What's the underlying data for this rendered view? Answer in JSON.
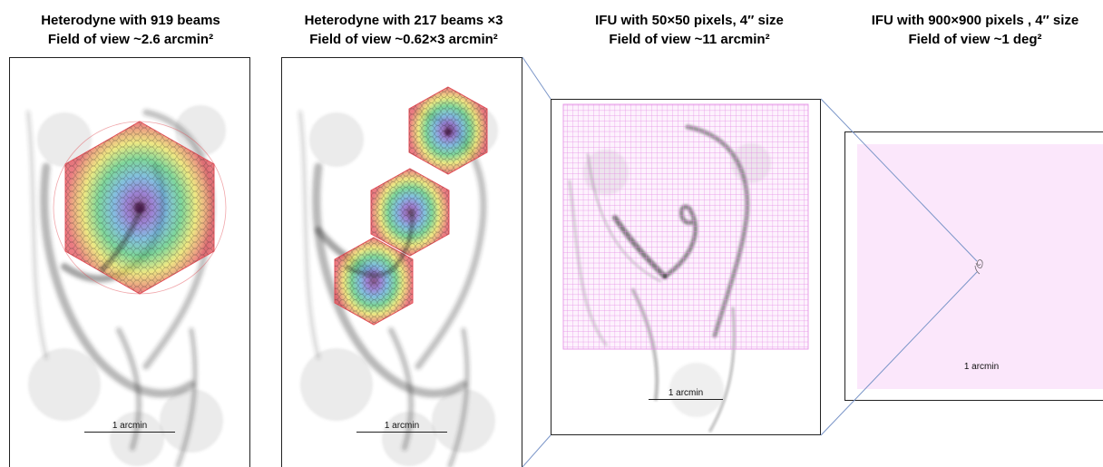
{
  "colors": {
    "ring_outer": "#e44f58",
    "ring_yellow": "#e8e15a",
    "ring_green": "#54c97a",
    "ring_blue": "#4b6fd1",
    "ring_center": "#5a1a5e",
    "ifu_grid": "#e38be4",
    "ifu_fill": "#fbe7fb",
    "nebula": "#333333",
    "connector": "#7a95c8"
  },
  "panels": [
    {
      "title_line1": "Heterodyne with 919 beams",
      "title_line2": "Field of view ~2.6 arcmin²",
      "scale_label": "1 arcmin",
      "image_name": "nebula-image",
      "overlay": "hexagon-array-919"
    },
    {
      "title_line1": "Heterodyne with 217 beams ×3",
      "title_line2": "Field of view ~0.62×3 arcmin²",
      "scale_label": "1 arcmin",
      "image_name": "nebula-image",
      "overlay": "hexagon-array-217x3"
    },
    {
      "title_line1": "IFU with 50×50 pixels, 4″ size",
      "title_line2": "Field of view ~11 arcmin²",
      "scale_label": "1 arcmin",
      "image_name": "nebula-image",
      "overlay": "ifu-grid-50x50"
    },
    {
      "title_line1": "IFU with 900×900 pixels , 4″ size",
      "title_line2": "Field of view ~1 deg²",
      "scale_label": "1 arcmin",
      "image_name": "tiny-nebula-image",
      "overlay": "ifu-field-900x900"
    }
  ]
}
